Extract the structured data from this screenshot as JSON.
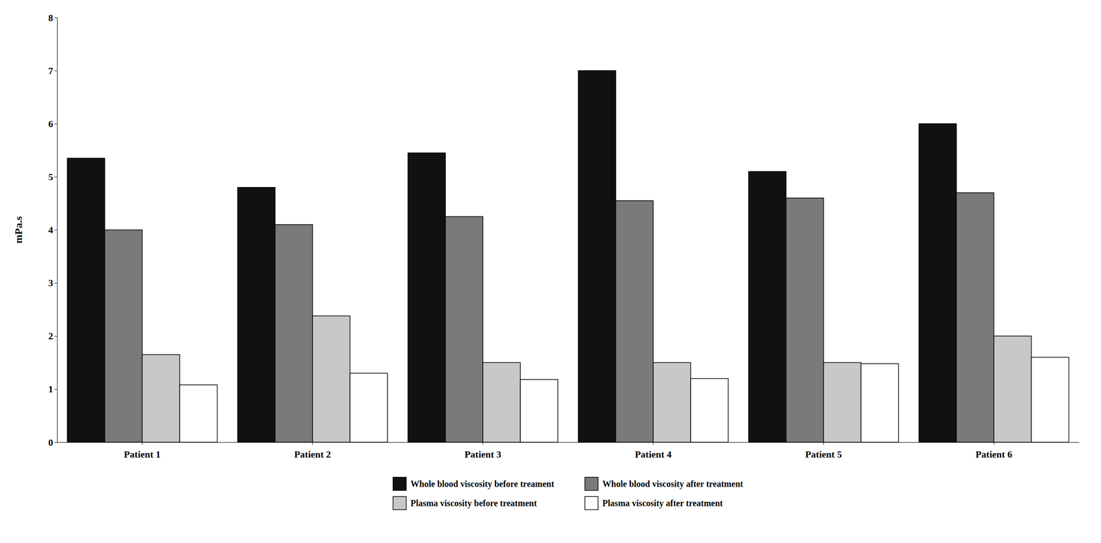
{
  "chart_data": {
    "type": "bar",
    "ylabel": "mPa.s",
    "categories": [
      "Patient 1",
      "Patient 2",
      "Patient 3",
      "Patient 4",
      "Patient 5",
      "Patient 6"
    ],
    "series": [
      {
        "name": "Whole blood viscosity before treament",
        "color": "#111111",
        "values": [
          5.35,
          4.8,
          5.45,
          7.0,
          5.1,
          6.0
        ]
      },
      {
        "name": "Whole blood viscosity after treatment",
        "color": "#7a7a7a",
        "values": [
          4.0,
          4.1,
          4.25,
          4.55,
          4.6,
          4.7
        ]
      },
      {
        "name": "Plasma viscosity before treatment",
        "color": "#c8c8c8",
        "values": [
          1.65,
          2.38,
          1.5,
          1.5,
          1.5,
          2.0
        ]
      },
      {
        "name": "Plasma viscosity after treatment",
        "color": "#ffffff",
        "values": [
          1.08,
          1.3,
          1.18,
          1.2,
          1.48,
          1.6
        ]
      }
    ],
    "ylim": [
      0,
      8
    ],
    "yticks": [
      0,
      1,
      2,
      3,
      4,
      5,
      6,
      7,
      8
    ],
    "grid": false,
    "legend": "bottom"
  }
}
